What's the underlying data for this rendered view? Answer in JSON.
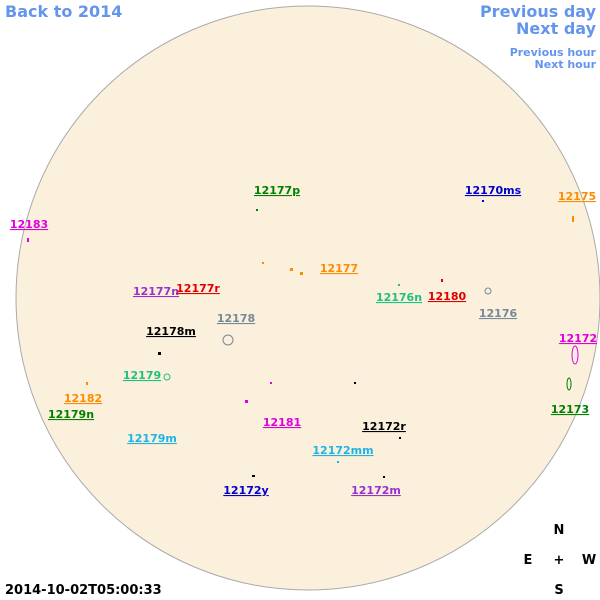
{
  "nav": {
    "back": "Back to 2014",
    "previous_day": "Previous day",
    "next_day": "Next day",
    "previous_hour": "Previous hour",
    "next_hour": "Next hour"
  },
  "timestamp": "2014-10-02T05:00:33",
  "compass": {
    "north": "N",
    "east": "E",
    "center": "+",
    "west": "W",
    "south": "S"
  },
  "regions": [
    {
      "label": "12177p",
      "color": "#008000"
    },
    {
      "label": "12170ms",
      "color": "#0000cd"
    },
    {
      "label": "12175",
      "color": "#ff8c00"
    },
    {
      "label": "12183",
      "color": "#e000e0"
    },
    {
      "label": "12177",
      "color": "#ff8c00"
    },
    {
      "label": "12176n",
      "color": "#20c080"
    },
    {
      "label": "12180",
      "color": "#e00000"
    },
    {
      "label": "12177n",
      "color": "#9932cc"
    },
    {
      "label": "12177r",
      "color": "#e00000"
    },
    {
      "label": "12176",
      "color": "#778899"
    },
    {
      "label": "12178",
      "color": "#778899"
    },
    {
      "label": "12178m",
      "color": "#000000"
    },
    {
      "label": "12172",
      "color": "#e000e0"
    },
    {
      "label": "12179",
      "color": "#20c080"
    },
    {
      "label": "12182",
      "color": "#ff8c00"
    },
    {
      "label": "12173",
      "color": "#008000"
    },
    {
      "label": "12179n",
      "color": "#008000"
    },
    {
      "label": "12181",
      "color": "#e000e0"
    },
    {
      "label": "12172r",
      "color": "#000000"
    },
    {
      "label": "12179m",
      "color": "#1eb4e6"
    },
    {
      "label": "12172mm",
      "color": "#1eb4e6"
    },
    {
      "label": "12172y",
      "color": "#0000cd"
    },
    {
      "label": "12172m",
      "color": "#9932cc"
    }
  ]
}
